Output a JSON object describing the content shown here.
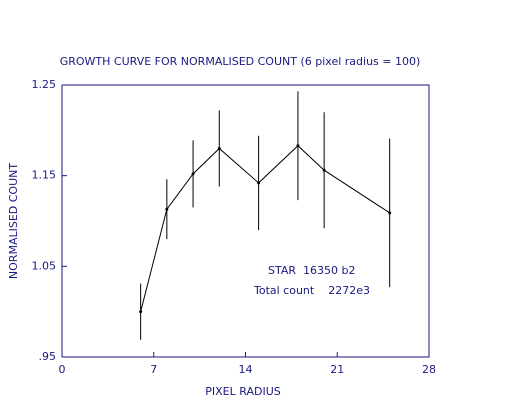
{
  "chart_data": {
    "type": "line",
    "title": "GROWTH CURVE FOR NORMALISED COUNT (6 pixel radius = 100)",
    "x_label": "PIXEL RADIUS",
    "y_label": "NORMALISED COUNT",
    "x": [
      6,
      8,
      10,
      12,
      15,
      18,
      20,
      25
    ],
    "series": [
      {
        "color": "#000000",
        "values": [
          1.0,
          1.113,
          1.152,
          1.18,
          1.142,
          1.183,
          1.156,
          1.109
        ],
        "errors": [
          0.031,
          0.033,
          0.037,
          0.042,
          0.052,
          0.06,
          0.064,
          0.082
        ]
      }
    ],
    "xlim": [
      0,
      28
    ],
    "xticks": [
      0,
      7,
      14,
      21,
      28
    ],
    "ylim": [
      0.95,
      1.25
    ],
    "yticks": [
      1.25,
      1.15,
      1.05,
      {
        "value": 0.95,
        "label": ".95"
      }
    ],
    "axis_color": "#1a1a80",
    "annotations": [
      "STAR  16350 b2",
      "Total count    2272e3"
    ]
  }
}
